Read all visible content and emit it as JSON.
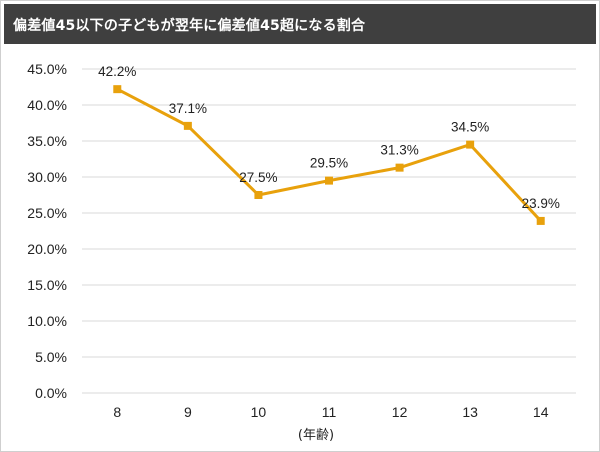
{
  "title": "偏差値45以下の子どもが翌年に偏差値45超になる割合",
  "colors": {
    "series": "#E8A10C",
    "grid": "#d9d9d9",
    "title_bg": "#3f3f3f"
  },
  "chart_data": {
    "type": "line",
    "title": "偏差値45以下の子どもが翌年に偏差値45超になる割合",
    "xlabel": "(年齢)",
    "ylabel": "",
    "categories": [
      "8",
      "9",
      "10",
      "11",
      "12",
      "13",
      "14"
    ],
    "series": [
      {
        "values": [
          42.2,
          37.1,
          27.5,
          29.5,
          31.3,
          34.5,
          23.9
        ]
      }
    ],
    "data_labels": [
      "42.2%",
      "37.1%",
      "27.5%",
      "29.5%",
      "31.3%",
      "34.5%",
      "23.9%"
    ],
    "ylim": [
      0,
      45
    ],
    "ystep": 5,
    "ytick_labels": [
      "0.0%",
      "5.0%",
      "10.0%",
      "15.0%",
      "20.0%",
      "25.0%",
      "30.0%",
      "35.0%",
      "40.0%",
      "45.0%"
    ],
    "grid": true,
    "legend": "none"
  }
}
